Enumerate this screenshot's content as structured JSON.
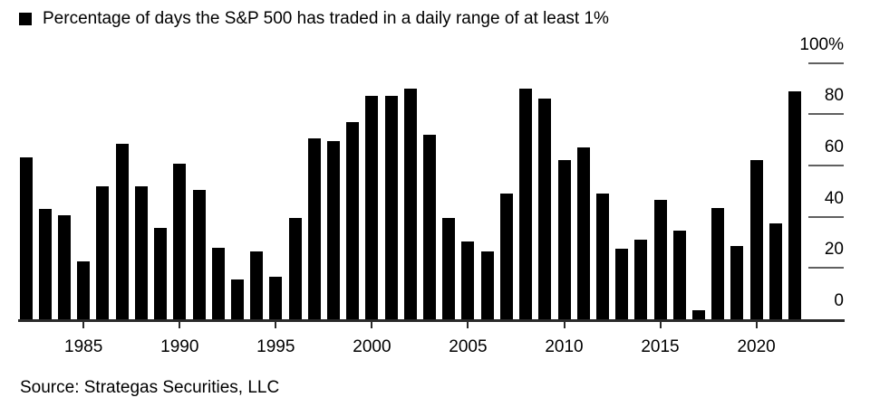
{
  "title": "Percentage of days the S&P 500 has traded in a daily range of at least 1%",
  "source": "Source: Strategas Securities, LLC",
  "colors": {
    "bar": "#000000",
    "text": "#000000",
    "axis_line": "#2a2a2a",
    "x_tick": "#2a2a2a",
    "y_dash": "#606060",
    "background": "#ffffff"
  },
  "chart_data": {
    "type": "bar",
    "title": "Percentage of days the S&P 500 has traded in a daily range of at least 1%",
    "x": [
      1982,
      1983,
      1984,
      1985,
      1986,
      1987,
      1988,
      1989,
      1990,
      1991,
      1992,
      1993,
      1994,
      1995,
      1996,
      1997,
      1998,
      1999,
      2000,
      2001,
      2002,
      2003,
      2004,
      2005,
      2006,
      2007,
      2008,
      2009,
      2010,
      2011,
      2012,
      2013,
      2014,
      2015,
      2016,
      2017,
      2018,
      2019,
      2020,
      2021,
      2022
    ],
    "values": [
      63,
      43,
      40.5,
      22.5,
      52,
      68.5,
      52,
      35.5,
      60.5,
      50.5,
      28,
      15.5,
      26.5,
      16.5,
      39.5,
      70.5,
      69.5,
      77,
      87,
      87,
      90,
      72,
      39.5,
      30.5,
      26.5,
      49,
      90,
      86,
      62,
      67,
      49,
      27.5,
      31,
      46.5,
      34.5,
      3.5,
      43.5,
      28.5,
      62,
      37.5,
      89
    ],
    "xlabel": "",
    "ylabel": "%",
    "ylim": [
      0,
      100
    ],
    "grid": false,
    "legend_position": "top-left",
    "x_ticks": [
      {
        "year": 1985,
        "label": "1985"
      },
      {
        "year": 1990,
        "label": "1990"
      },
      {
        "year": 1995,
        "label": "1995"
      },
      {
        "year": 2000,
        "label": "2000"
      },
      {
        "year": 2005,
        "label": "2005"
      },
      {
        "year": 2010,
        "label": "2010"
      },
      {
        "year": 2015,
        "label": "2015"
      },
      {
        "year": 2020,
        "label": "2020"
      }
    ],
    "y_ticks": [
      {
        "value": 0,
        "label": "0"
      },
      {
        "value": 20,
        "label": "20"
      },
      {
        "value": 40,
        "label": "40"
      },
      {
        "value": 60,
        "label": "60"
      },
      {
        "value": 80,
        "label": "80"
      },
      {
        "value": 100,
        "label": "100%"
      }
    ]
  }
}
